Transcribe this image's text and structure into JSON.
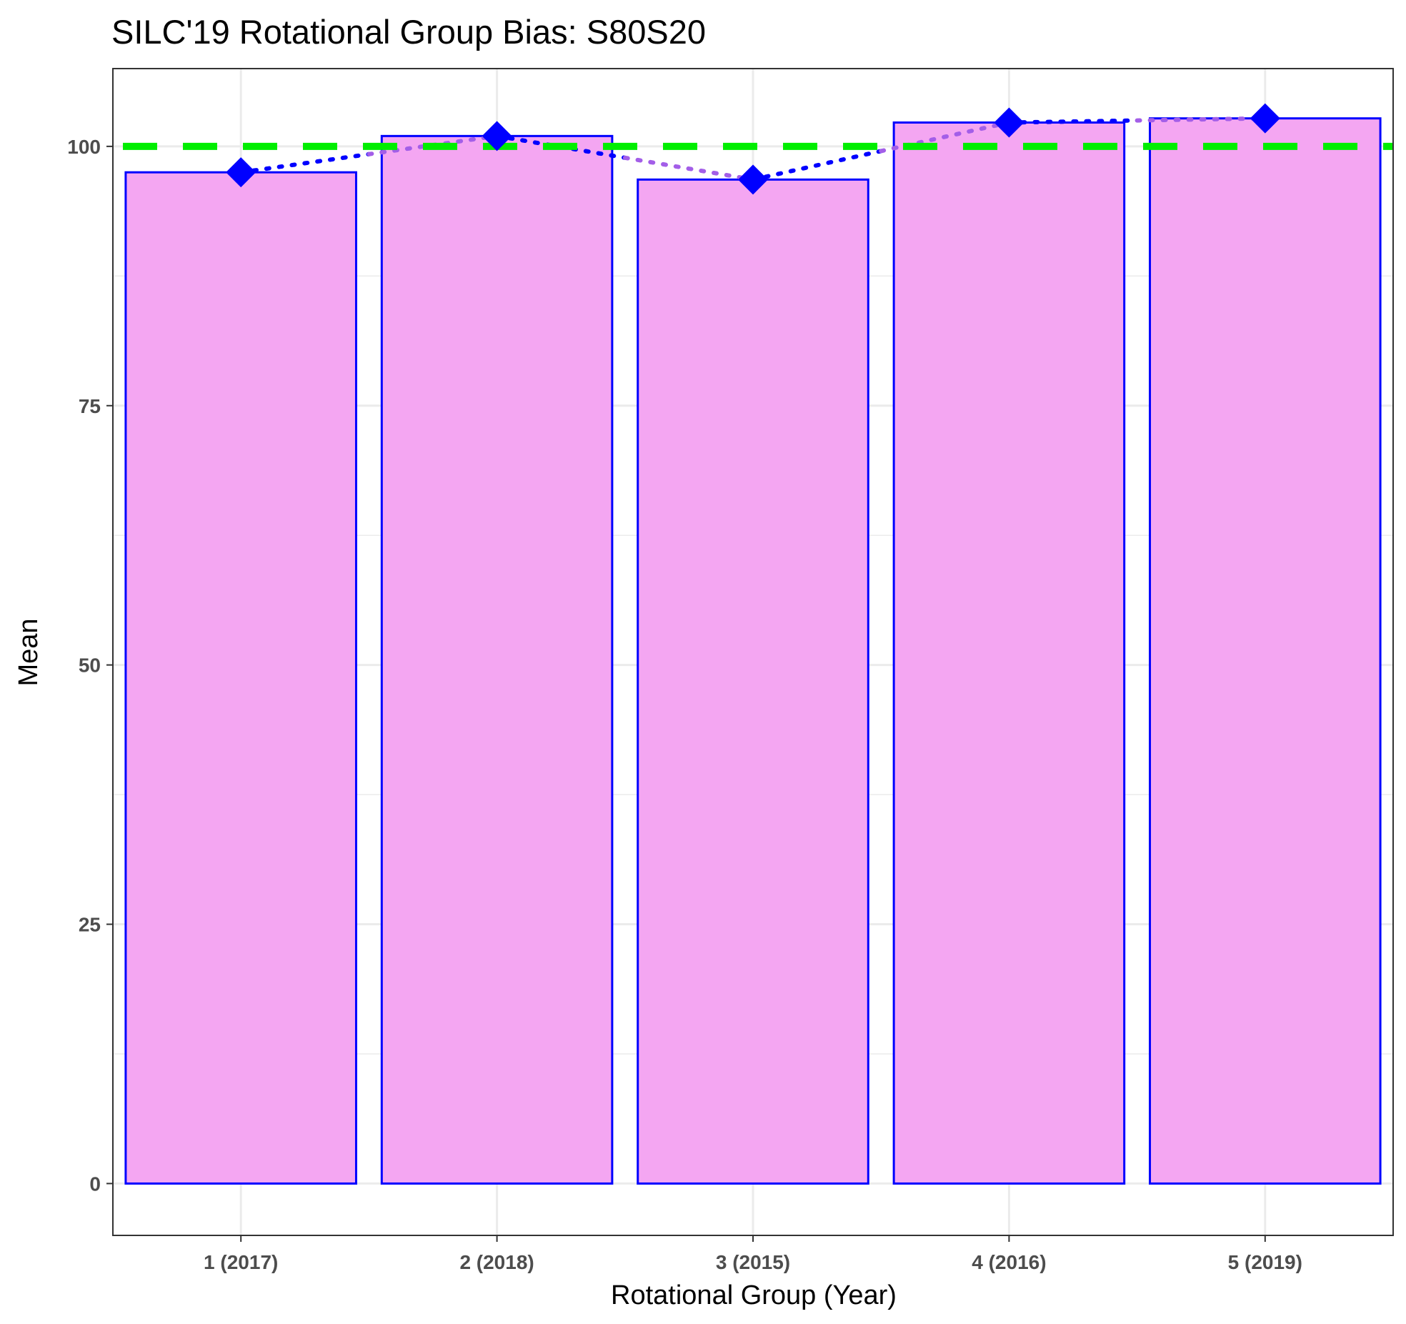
{
  "chart_data": {
    "type": "bar",
    "title": "SILC'19 Rotational Group Bias: S80S20",
    "xlabel": "Rotational Group (Year)",
    "ylabel": "Mean",
    "categories": [
      "1 (2017)",
      "2 (2018)",
      "3 (2015)",
      "4 (2016)",
      "5 (2019)"
    ],
    "series": [
      {
        "values": [
          97.5,
          101.0,
          96.8,
          102.3,
          102.7
        ]
      }
    ],
    "line_overlay": {
      "values": [
        97.5,
        101.0,
        96.8,
        102.3,
        102.7
      ],
      "style": "dotted",
      "marker": "diamond"
    },
    "reference_line": {
      "y": 100,
      "style": "dashed"
    },
    "ylim": [
      -5,
      107.5
    ],
    "yticks": [
      0,
      25,
      50,
      75,
      100
    ],
    "ytick_labels": [
      "0",
      "25",
      "50",
      "75",
      "100"
    ],
    "grid": true,
    "legend": "none",
    "colors": {
      "bar_fill": "#f4a6f2",
      "bar_stroke": "#0000ff",
      "marker": "#0000ff",
      "line_left": "#0000ff",
      "line_right": "#a35ee8",
      "reference": "#00ee00",
      "grid": "#ebebeb",
      "panel_border": "#333333",
      "tick_text": "#4d4d4d"
    }
  }
}
